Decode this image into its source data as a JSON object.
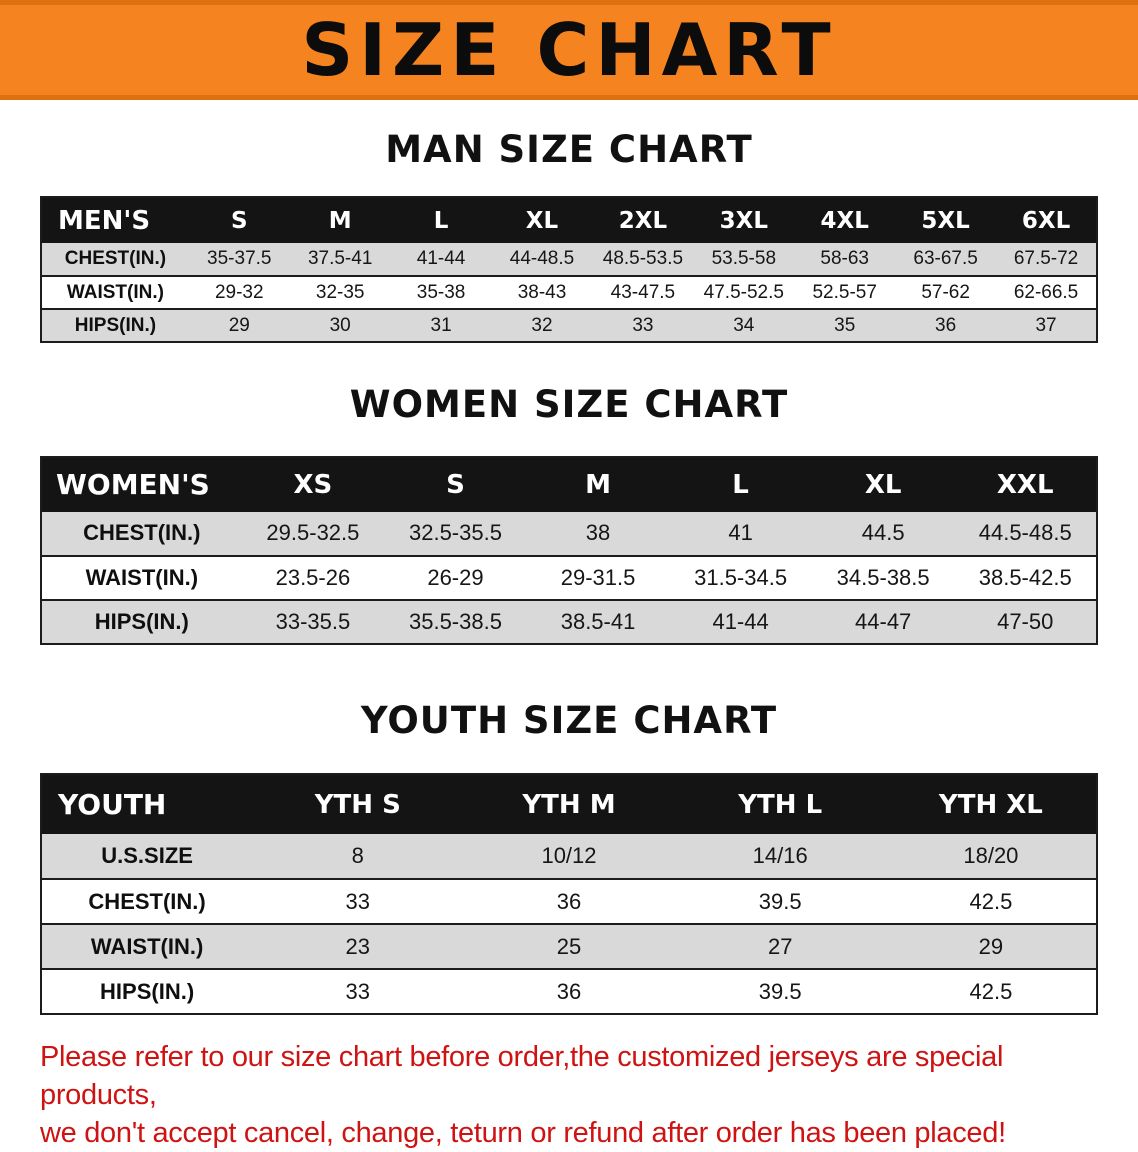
{
  "banner": {
    "title": "SIZE CHART"
  },
  "colors": {
    "banner_orange": "#f5831f",
    "banner_orange_dark": "#dd7110",
    "header_black": "#141414",
    "row_gray": "#d9d9d9",
    "disclaimer_red": "#cf1313"
  },
  "sections": [
    {
      "heading": "MAN SIZE CHART",
      "table": {
        "header": [
          "MEN'S",
          "S",
          "M",
          "L",
          "XL",
          "2XL",
          "3XL",
          "4XL",
          "5XL",
          "6XL"
        ],
        "rows": [
          {
            "label": "CHEST(IN.)",
            "values": [
              "35-37.5",
              "37.5-41",
              "41-44",
              "44-48.5",
              "48.5-53.5",
              "53.5-58",
              "58-63",
              "63-67.5",
              "67.5-72"
            ]
          },
          {
            "label": "WAIST(IN.)",
            "values": [
              "29-32",
              "32-35",
              "35-38",
              "38-43",
              "43-47.5",
              "47.5-52.5",
              "52.5-57",
              "57-62",
              "62-66.5"
            ]
          },
          {
            "label": "HIPS(IN.)",
            "values": [
              "29",
              "30",
              "31",
              "32",
              "33",
              "34",
              "35",
              "36",
              "37"
            ]
          }
        ]
      }
    },
    {
      "heading": "WOMEN SIZE CHART",
      "table": {
        "header": [
          "WOMEN'S",
          "XS",
          "S",
          "M",
          "L",
          "XL",
          "XXL"
        ],
        "rows": [
          {
            "label": "CHEST(IN.)",
            "values": [
              "29.5-32.5",
              "32.5-35.5",
              "38",
              "41",
              "44.5",
              "44.5-48.5"
            ]
          },
          {
            "label": "WAIST(IN.)",
            "values": [
              "23.5-26",
              "26-29",
              "29-31.5",
              "31.5-34.5",
              "34.5-38.5",
              "38.5-42.5"
            ]
          },
          {
            "label": "HIPS(IN.)",
            "values": [
              "33-35.5",
              "35.5-38.5",
              "38.5-41",
              "41-44",
              "44-47",
              "47-50"
            ]
          }
        ]
      }
    },
    {
      "heading": "YOUTH SIZE CHART",
      "table": {
        "header": [
          "YOUTH",
          "YTH S",
          "YTH M",
          "YTH L",
          "YTH XL"
        ],
        "rows": [
          {
            "label": "U.S.SIZE",
            "values": [
              "8",
              "10/12",
              "14/16",
              "18/20"
            ]
          },
          {
            "label": "CHEST(IN.)",
            "values": [
              "33",
              "36",
              "39.5",
              "42.5"
            ]
          },
          {
            "label": "WAIST(IN.)",
            "values": [
              "23",
              "25",
              "27",
              "29"
            ]
          },
          {
            "label": "HIPS(IN.)",
            "values": [
              "33",
              "36",
              "39.5",
              "42.5"
            ]
          }
        ]
      }
    }
  ],
  "disclaimer": {
    "lines": [
      "Please refer to our size chart before order,the customized jerseys are special products,",
      "we don't accept cancel, change, teturn or refund after order has been placed!"
    ]
  }
}
